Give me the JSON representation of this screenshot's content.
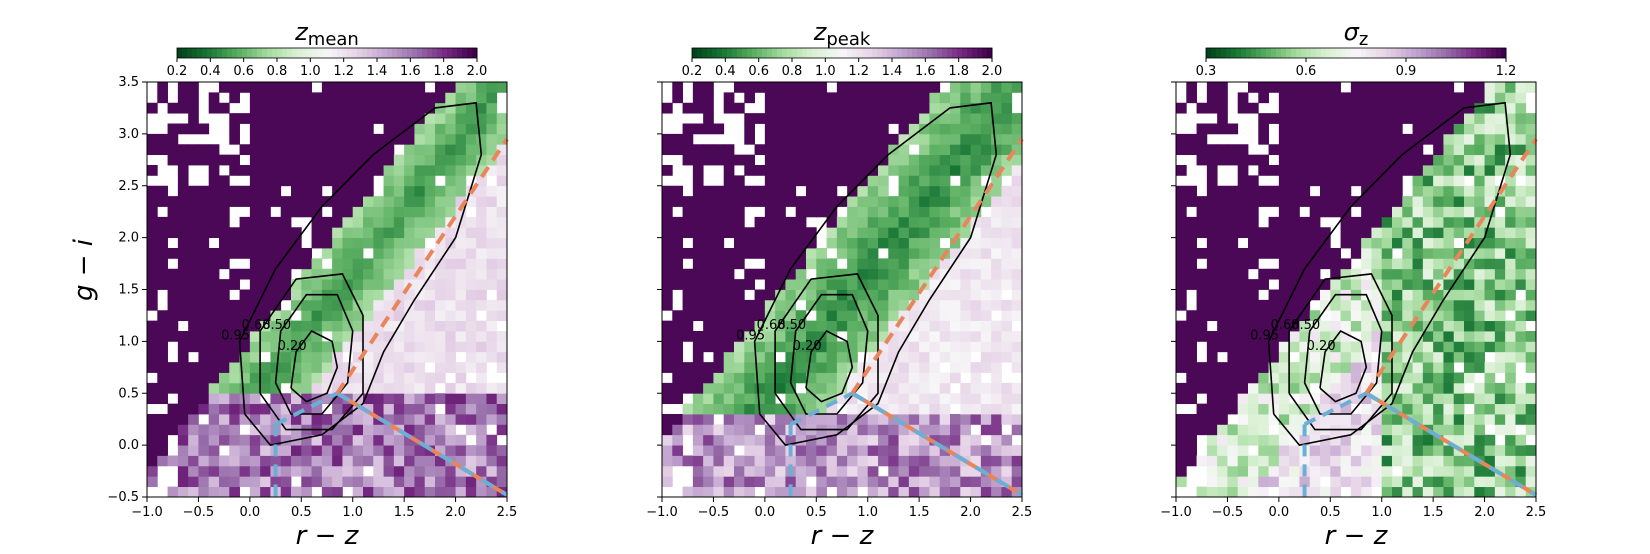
{
  "colors": {
    "cmap": [
      "#00441b",
      "#1b7837",
      "#5aae61",
      "#a6dba0",
      "#d9f0d3",
      "#f7f7f7",
      "#e7d4e8",
      "#c2a5cf",
      "#9970ab",
      "#762a83",
      "#40004b"
    ],
    "contour_line": "#000000",
    "cut_orange": "#e8855a",
    "cut_blue": "#6baed6"
  },
  "chart_data": [
    {
      "type": "heatmap",
      "colorbar": {
        "title_main": "z",
        "title_sub": "mean",
        "range": [
          0.2,
          2.0
        ],
        "ticks": [
          "0.2",
          "0.4",
          "0.6",
          "0.8",
          "1.0",
          "1.2",
          "1.4",
          "1.6",
          "1.8",
          "2.0"
        ]
      },
      "xlabel": "r − z",
      "ylabel": "g − i",
      "xlim": [
        -1.0,
        2.5
      ],
      "ylim": [
        -0.5,
        3.5
      ],
      "xticks": [
        "−1.0",
        "−0.5",
        "0.0",
        "0.5",
        "1.0",
        "1.5",
        "2.0",
        "2.5"
      ],
      "yticks": [
        "−0.5",
        "0.0",
        "0.5",
        "1.0",
        "1.5",
        "2.0",
        "2.5",
        "3.0",
        "3.5"
      ],
      "grid": false,
      "contour_levels": [
        "0.20",
        "0.50",
        "0.68",
        "0.95"
      ],
      "value_pattern": "sequence-low-ridge",
      "grid_bins": [
        35,
        40
      ]
    },
    {
      "type": "heatmap",
      "colorbar": {
        "title_main": "z",
        "title_sub": "peak",
        "range": [
          0.2,
          2.0
        ],
        "ticks": [
          "0.2",
          "0.4",
          "0.6",
          "0.8",
          "1.0",
          "1.2",
          "1.4",
          "1.6",
          "1.8",
          "2.0"
        ]
      },
      "xlabel": "r − z",
      "ylabel": "",
      "xlim": [
        -1.0,
        2.5
      ],
      "ylim": [
        -0.5,
        3.5
      ],
      "xticks": [
        "−1.0",
        "−0.5",
        "0.0",
        "0.5",
        "1.0",
        "1.5",
        "2.0",
        "2.5"
      ],
      "yticks": [],
      "grid": false,
      "contour_levels": [
        "0.20",
        "0.50",
        "0.68",
        "0.95"
      ],
      "value_pattern": "sequence-low-wide",
      "grid_bins": [
        35,
        40
      ]
    },
    {
      "type": "heatmap",
      "colorbar": {
        "title_main": "σ",
        "title_sub": "z",
        "range": [
          0.3,
          1.2
        ],
        "ticks": [
          "0.3",
          "0.6",
          "0.9",
          "1.2"
        ]
      },
      "xlabel": "r − z",
      "ylabel": "",
      "xlim": [
        -1.0,
        2.5
      ],
      "ylim": [
        -0.5,
        3.5
      ],
      "xticks": [
        "−1.0",
        "−0.5",
        "0.0",
        "0.5",
        "1.0",
        "1.5",
        "2.0",
        "2.5"
      ],
      "yticks": [],
      "grid": false,
      "contour_levels": [
        "0.20",
        "0.50",
        "0.68",
        "0.95"
      ],
      "value_pattern": "scatter-low-right",
      "grid_bins": [
        35,
        40
      ]
    }
  ],
  "contours": [
    {
      "level": "0.20",
      "points": [
        [
          0.4,
          0.55
        ],
        [
          0.45,
          0.9
        ],
        [
          0.6,
          1.1
        ],
        [
          0.8,
          1.0
        ],
        [
          0.85,
          0.75
        ],
        [
          0.75,
          0.5
        ],
        [
          0.55,
          0.42
        ],
        [
          0.4,
          0.55
        ]
      ]
    },
    {
      "level": "0.50",
      "points": [
        [
          0.25,
          0.6
        ],
        [
          0.3,
          1.1
        ],
        [
          0.55,
          1.45
        ],
        [
          0.85,
          1.45
        ],
        [
          1.0,
          1.1
        ],
        [
          0.95,
          0.6
        ],
        [
          0.7,
          0.3
        ],
        [
          0.4,
          0.3
        ],
        [
          0.25,
          0.6
        ]
      ]
    },
    {
      "level": "0.68",
      "points": [
        [
          0.1,
          0.5
        ],
        [
          0.1,
          1.1
        ],
        [
          0.45,
          1.6
        ],
        [
          0.9,
          1.65
        ],
        [
          1.1,
          1.25
        ],
        [
          1.1,
          0.5
        ],
        [
          0.8,
          0.15
        ],
        [
          0.35,
          0.15
        ],
        [
          0.1,
          0.5
        ]
      ]
    },
    {
      "level": "0.95",
      "points": [
        [
          -0.05,
          0.3
        ],
        [
          -0.1,
          1.0
        ],
        [
          0.25,
          1.7
        ],
        [
          0.7,
          2.3
        ],
        [
          1.2,
          2.8
        ],
        [
          1.8,
          3.25
        ],
        [
          2.2,
          3.3
        ],
        [
          2.25,
          2.8
        ],
        [
          2.0,
          2.0
        ],
        [
          1.6,
          1.4
        ],
        [
          1.3,
          0.9
        ],
        [
          1.1,
          0.4
        ],
        [
          0.7,
          0.1
        ],
        [
          0.2,
          0.0
        ],
        [
          -0.05,
          0.3
        ]
      ]
    }
  ],
  "cuts": {
    "orange_dashed": [
      [
        0.85,
        0.5
      ],
      [
        2.5,
        2.95
      ]
    ],
    "orange_diag": [
      [
        0.85,
        0.5
      ],
      [
        2.5,
        -0.48
      ]
    ],
    "blue_diag": [
      [
        0.85,
        0.5
      ],
      [
        2.5,
        -0.48
      ]
    ],
    "blue_upper": [
      [
        0.25,
        0.2
      ],
      [
        0.85,
        0.5
      ]
    ],
    "blue_vertical": [
      [
        0.25,
        0.2
      ],
      [
        0.25,
        -0.5
      ]
    ]
  }
}
